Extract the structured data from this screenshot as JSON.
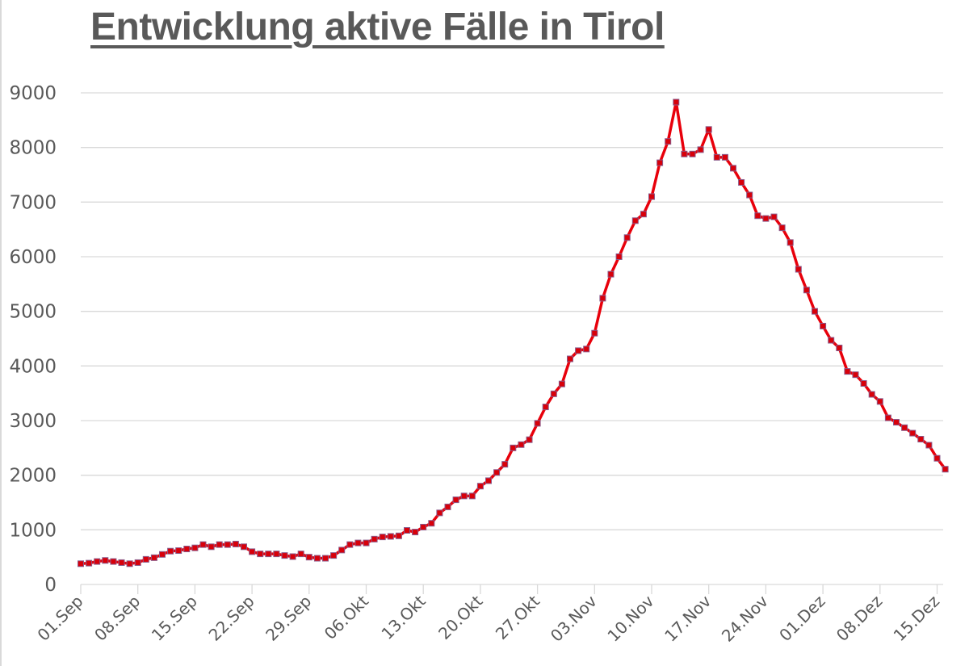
{
  "title": "Entwicklung aktive Fälle in Tirol",
  "colors": {
    "line": "#e8000b",
    "marker_fill": "#d8000a",
    "marker_stroke": "#8a5a8a",
    "grid": "#d9d9d9",
    "text": "#595959"
  },
  "chart_data": {
    "type": "line",
    "title": "Entwicklung aktive Fälle in Tirol",
    "xlabel": "",
    "ylabel": "",
    "ylim": [
      0,
      9000
    ],
    "yticks": [
      0,
      1000,
      2000,
      3000,
      4000,
      5000,
      6000,
      7000,
      8000,
      9000
    ],
    "xtick_labels": [
      "01.Sep",
      "08.Sep",
      "15.Sep",
      "22.Sep",
      "29.Sep",
      "06.Okt",
      "13.Okt",
      "20.Okt",
      "27.Okt",
      "03.Nov",
      "10.Nov",
      "17.Nov",
      "24.Nov",
      "01.Dez",
      "08.Dez",
      "15.Dez"
    ],
    "grid": true,
    "legend": "none",
    "x_start": "01.Sep",
    "x_step_days": 1,
    "series": [
      {
        "name": "Aktive Fälle",
        "marker": "square",
        "values": [
          380,
          390,
          420,
          440,
          420,
          400,
          380,
          400,
          460,
          490,
          550,
          610,
          620,
          650,
          670,
          730,
          690,
          730,
          730,
          740,
          690,
          600,
          560,
          560,
          560,
          530,
          510,
          560,
          500,
          480,
          480,
          530,
          630,
          730,
          760,
          760,
          830,
          870,
          880,
          890,
          990,
          960,
          1050,
          1120,
          1310,
          1420,
          1550,
          1620,
          1620,
          1800,
          1900,
          2050,
          2200,
          2500,
          2560,
          2650,
          2950,
          3250,
          3490,
          3670,
          4130,
          4280,
          4310,
          4600,
          5240,
          5680,
          6000,
          6350,
          6660,
          6780,
          7100,
          7720,
          8110,
          8830,
          7880,
          7880,
          7960,
          8330,
          7820,
          7820,
          7620,
          7360,
          7130,
          6750,
          6700,
          6730,
          6530,
          6260,
          5770,
          5390,
          5000,
          4730,
          4470,
          4330,
          3900,
          3840,
          3680,
          3480,
          3350,
          3050,
          2970,
          2870,
          2770,
          2660,
          2550,
          2310,
          2110
        ]
      }
    ]
  }
}
